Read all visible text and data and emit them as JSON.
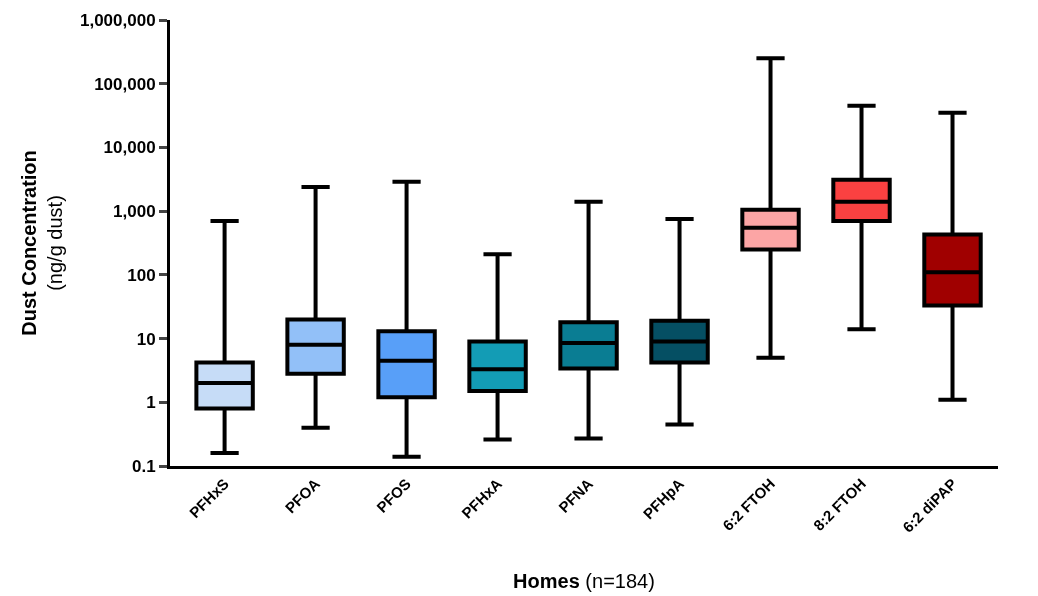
{
  "chart_data": {
    "type": "box",
    "xlabel": "Homes (n=184)",
    "ylabel": "Dust Concentration\n(ng/g dust)",
    "categories": [
      "PFHxS",
      "PFOA",
      "PFOS",
      "PFHxA",
      "PFNA",
      "PFHpA",
      "6:2 FTOH",
      "8:2 FTOH",
      "6:2 diPAP"
    ],
    "colors": [
      "#c6dcf7",
      "#92c0f8",
      "#589ff8",
      "#139cb5",
      "#0a7d93",
      "#054f63",
      "#fca5a5",
      "#fa4141",
      "#a00000"
    ],
    "boxes": [
      {
        "low": 0.16,
        "q1": 0.8,
        "median": 2,
        "q3": 4.2,
        "high": 700
      },
      {
        "low": 0.4,
        "q1": 2.8,
        "median": 8,
        "q3": 20,
        "high": 2400
      },
      {
        "low": 0.14,
        "q1": 1.2,
        "median": 4.5,
        "q3": 13,
        "high": 2900
      },
      {
        "low": 0.26,
        "q1": 1.5,
        "median": 3.3,
        "q3": 9,
        "high": 210
      },
      {
        "low": 0.27,
        "q1": 3.4,
        "median": 8.5,
        "q3": 18,
        "high": 1400
      },
      {
        "low": 0.45,
        "q1": 4.2,
        "median": 9,
        "q3": 19,
        "high": 750
      },
      {
        "low": 5,
        "q1": 250,
        "median": 550,
        "q3": 1050,
        "high": 250000
      },
      {
        "low": 14,
        "q1": 700,
        "median": 1400,
        "q3": 3100,
        "high": 45000
      },
      {
        "low": 1.1,
        "q1": 33,
        "median": 110,
        "q3": 430,
        "high": 35000
      }
    ],
    "log": "y",
    "ylim": [
      0.1,
      1000000
    ],
    "yticks": [
      0.1,
      1,
      10,
      100,
      {
        "value": 1000,
        "label": "1,000"
      },
      {
        "value": 10000,
        "label": "10,000"
      },
      {
        "value": 100000,
        "label": "100,000"
      },
      {
        "value": 1000000,
        "label": "1,000,000"
      }
    ],
    "grid": false
  }
}
